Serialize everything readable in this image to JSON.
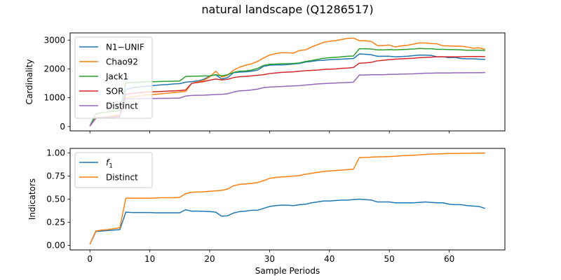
{
  "figure_title": "natural landscape (Q1286517)",
  "chart_data": [
    {
      "type": "line",
      "ylabel": "Cardinality",
      "xlabel": "",
      "xlim": [
        -3.3,
        69.3
      ],
      "ylim": [
        -150,
        3250
      ],
      "yticks": [
        0,
        1000,
        2000,
        3000
      ],
      "xticks": [
        0,
        10,
        20,
        30,
        40,
        50,
        60
      ],
      "show_x_tick_labels": false,
      "legend_position": "upper-left",
      "x": [
        0,
        1,
        2,
        3,
        4,
        5,
        6,
        7,
        8,
        9,
        10,
        11,
        12,
        13,
        14,
        15,
        16,
        17,
        18,
        19,
        20,
        21,
        22,
        23,
        24,
        25,
        26,
        27,
        28,
        29,
        30,
        31,
        32,
        33,
        34,
        35,
        36,
        37,
        38,
        39,
        40,
        41,
        42,
        43,
        44,
        45,
        46,
        47,
        48,
        49,
        50,
        51,
        52,
        53,
        54,
        55,
        56,
        57,
        58,
        59,
        60,
        61,
        62,
        63,
        64,
        65,
        66
      ],
      "series": [
        {
          "name": "N1−UNIF",
          "color": "#1f77b4",
          "values": [
            20,
            300,
            310,
            320,
            350,
            380,
            1280,
            1340,
            1370,
            1390,
            1410,
            1430,
            1450,
            1460,
            1480,
            1490,
            1540,
            1560,
            1580,
            1640,
            1750,
            1800,
            1650,
            1700,
            1870,
            1890,
            1900,
            1920,
            1960,
            2090,
            2130,
            2140,
            2140,
            2150,
            2170,
            2190,
            2240,
            2260,
            2290,
            2300,
            2320,
            2330,
            2340,
            2350,
            2360,
            2520,
            2510,
            2490,
            2440,
            2440,
            2440,
            2420,
            2430,
            2440,
            2460,
            2480,
            2480,
            2470,
            2420,
            2420,
            2390,
            2400,
            2360,
            2350,
            2350,
            2340,
            2330
          ]
        },
        {
          "name": "Chao92",
          "color": "#ff7f0e",
          "values": [
            20,
            310,
            320,
            340,
            380,
            400,
            1000,
            1030,
            1060,
            1090,
            1100,
            1120,
            1140,
            1160,
            1180,
            1200,
            1220,
            1500,
            1550,
            1600,
            1720,
            1920,
            1720,
            1780,
            1960,
            2060,
            2130,
            2180,
            2260,
            2380,
            2480,
            2530,
            2560,
            2560,
            2550,
            2640,
            2660,
            2760,
            2840,
            2920,
            2960,
            2980,
            3020,
            3060,
            3070,
            2980,
            2980,
            2950,
            2810,
            2810,
            2830,
            2760,
            2800,
            2820,
            2860,
            2900,
            2900,
            2880,
            2870,
            2800,
            2800,
            2790,
            2790,
            2760,
            2720,
            2730,
            2680
          ]
        },
        {
          "name": "Jack1",
          "color": "#2ca02c",
          "values": [
            20,
            440,
            480,
            510,
            530,
            550,
            1520,
            1530,
            1540,
            1550,
            1555,
            1560,
            1565,
            1570,
            1575,
            1580,
            1740,
            1745,
            1750,
            1755,
            1760,
            1800,
            1760,
            1800,
            1880,
            1920,
            1930,
            1960,
            2020,
            2120,
            2160,
            2170,
            2180,
            2180,
            2190,
            2210,
            2260,
            2290,
            2330,
            2370,
            2390,
            2400,
            2420,
            2440,
            2450,
            2700,
            2700,
            2690,
            2660,
            2660,
            2670,
            2660,
            2670,
            2680,
            2690,
            2710,
            2700,
            2700,
            2680,
            2680,
            2670,
            2670,
            2660,
            2650,
            2650,
            2650,
            2640
          ]
        },
        {
          "name": "SOR",
          "color": "#d62728",
          "values": [
            20,
            290,
            300,
            310,
            320,
            340,
            1120,
            1150,
            1170,
            1190,
            1200,
            1210,
            1220,
            1230,
            1240,
            1250,
            1270,
            1500,
            1530,
            1560,
            1610,
            1650,
            1620,
            1640,
            1700,
            1730,
            1740,
            1760,
            1780,
            1800,
            1840,
            1860,
            1880,
            1890,
            1900,
            1920,
            1940,
            1950,
            1960,
            1980,
            1990,
            2000,
            2020,
            2030,
            2050,
            2200,
            2210,
            2230,
            2280,
            2300,
            2320,
            2340,
            2350,
            2360,
            2370,
            2390,
            2400,
            2410,
            2420,
            2420,
            2420,
            2420,
            2420,
            2430,
            2430,
            2430,
            2430
          ]
        },
        {
          "name": "Distinct",
          "color": "#9467bd",
          "values": [
            20,
            300,
            310,
            320,
            340,
            350,
            960,
            960,
            965,
            970,
            975,
            975,
            980,
            980,
            985,
            990,
            1060,
            1080,
            1085,
            1090,
            1100,
            1110,
            1120,
            1140,
            1200,
            1240,
            1250,
            1270,
            1300,
            1350,
            1370,
            1380,
            1390,
            1400,
            1410,
            1420,
            1440,
            1460,
            1480,
            1490,
            1500,
            1510,
            1520,
            1530,
            1540,
            1790,
            1790,
            1800,
            1800,
            1800,
            1810,
            1815,
            1820,
            1825,
            1830,
            1840,
            1850,
            1855,
            1860,
            1860,
            1860,
            1865,
            1865,
            1870,
            1870,
            1870,
            1875
          ]
        }
      ]
    },
    {
      "type": "line",
      "ylabel": "Indicators",
      "xlabel": "Sample Periods",
      "xlim": [
        -3.3,
        69.3
      ],
      "ylim": [
        -0.05,
        1.05
      ],
      "yticks": [
        0.0,
        0.25,
        0.5,
        0.75,
        1.0
      ],
      "ytick_labels": [
        "0.00",
        "0.25",
        "0.50",
        "0.75",
        "1.00"
      ],
      "xticks": [
        0,
        10,
        20,
        30,
        40,
        50,
        60
      ],
      "show_x_tick_labels": true,
      "legend_position": "upper-left",
      "x": [
        0,
        1,
        2,
        3,
        4,
        5,
        6,
        7,
        8,
        9,
        10,
        11,
        12,
        13,
        14,
        15,
        16,
        17,
        18,
        19,
        20,
        21,
        22,
        23,
        24,
        25,
        26,
        27,
        28,
        29,
        30,
        31,
        32,
        33,
        34,
        35,
        36,
        37,
        38,
        39,
        40,
        41,
        42,
        43,
        44,
        45,
        46,
        47,
        48,
        49,
        50,
        51,
        52,
        53,
        54,
        55,
        56,
        57,
        58,
        59,
        60,
        61,
        62,
        63,
        64,
        65,
        66
      ],
      "series": [
        {
          "name": "f",
          "name_subscript": "1",
          "color": "#1f77b4",
          "values": [
            0.01,
            0.15,
            0.155,
            0.16,
            0.165,
            0.17,
            0.36,
            0.355,
            0.355,
            0.355,
            0.355,
            0.352,
            0.352,
            0.352,
            0.352,
            0.352,
            0.385,
            0.37,
            0.37,
            0.368,
            0.365,
            0.36,
            0.315,
            0.32,
            0.35,
            0.365,
            0.37,
            0.38,
            0.38,
            0.4,
            0.42,
            0.43,
            0.435,
            0.435,
            0.43,
            0.44,
            0.445,
            0.46,
            0.47,
            0.48,
            0.48,
            0.485,
            0.49,
            0.49,
            0.495,
            0.5,
            0.495,
            0.49,
            0.47,
            0.47,
            0.47,
            0.46,
            0.46,
            0.46,
            0.46,
            0.465,
            0.47,
            0.465,
            0.46,
            0.46,
            0.445,
            0.44,
            0.44,
            0.43,
            0.425,
            0.42,
            0.4
          ]
        },
        {
          "name": "Distinct",
          "color": "#ff7f0e",
          "values": [
            0.01,
            0.155,
            0.165,
            0.17,
            0.18,
            0.19,
            0.51,
            0.51,
            0.51,
            0.51,
            0.51,
            0.512,
            0.515,
            0.515,
            0.515,
            0.52,
            0.56,
            0.575,
            0.578,
            0.58,
            0.585,
            0.59,
            0.595,
            0.61,
            0.645,
            0.66,
            0.665,
            0.67,
            0.68,
            0.7,
            0.725,
            0.735,
            0.74,
            0.745,
            0.75,
            0.755,
            0.77,
            0.78,
            0.79,
            0.8,
            0.805,
            0.81,
            0.815,
            0.82,
            0.825,
            0.95,
            0.952,
            0.955,
            0.958,
            0.96,
            0.962,
            0.965,
            0.97,
            0.972,
            0.975,
            0.98,
            0.985,
            0.988,
            0.99,
            0.992,
            0.994,
            0.995,
            0.996,
            0.997,
            0.998,
            0.999,
            1.0
          ]
        }
      ]
    }
  ]
}
